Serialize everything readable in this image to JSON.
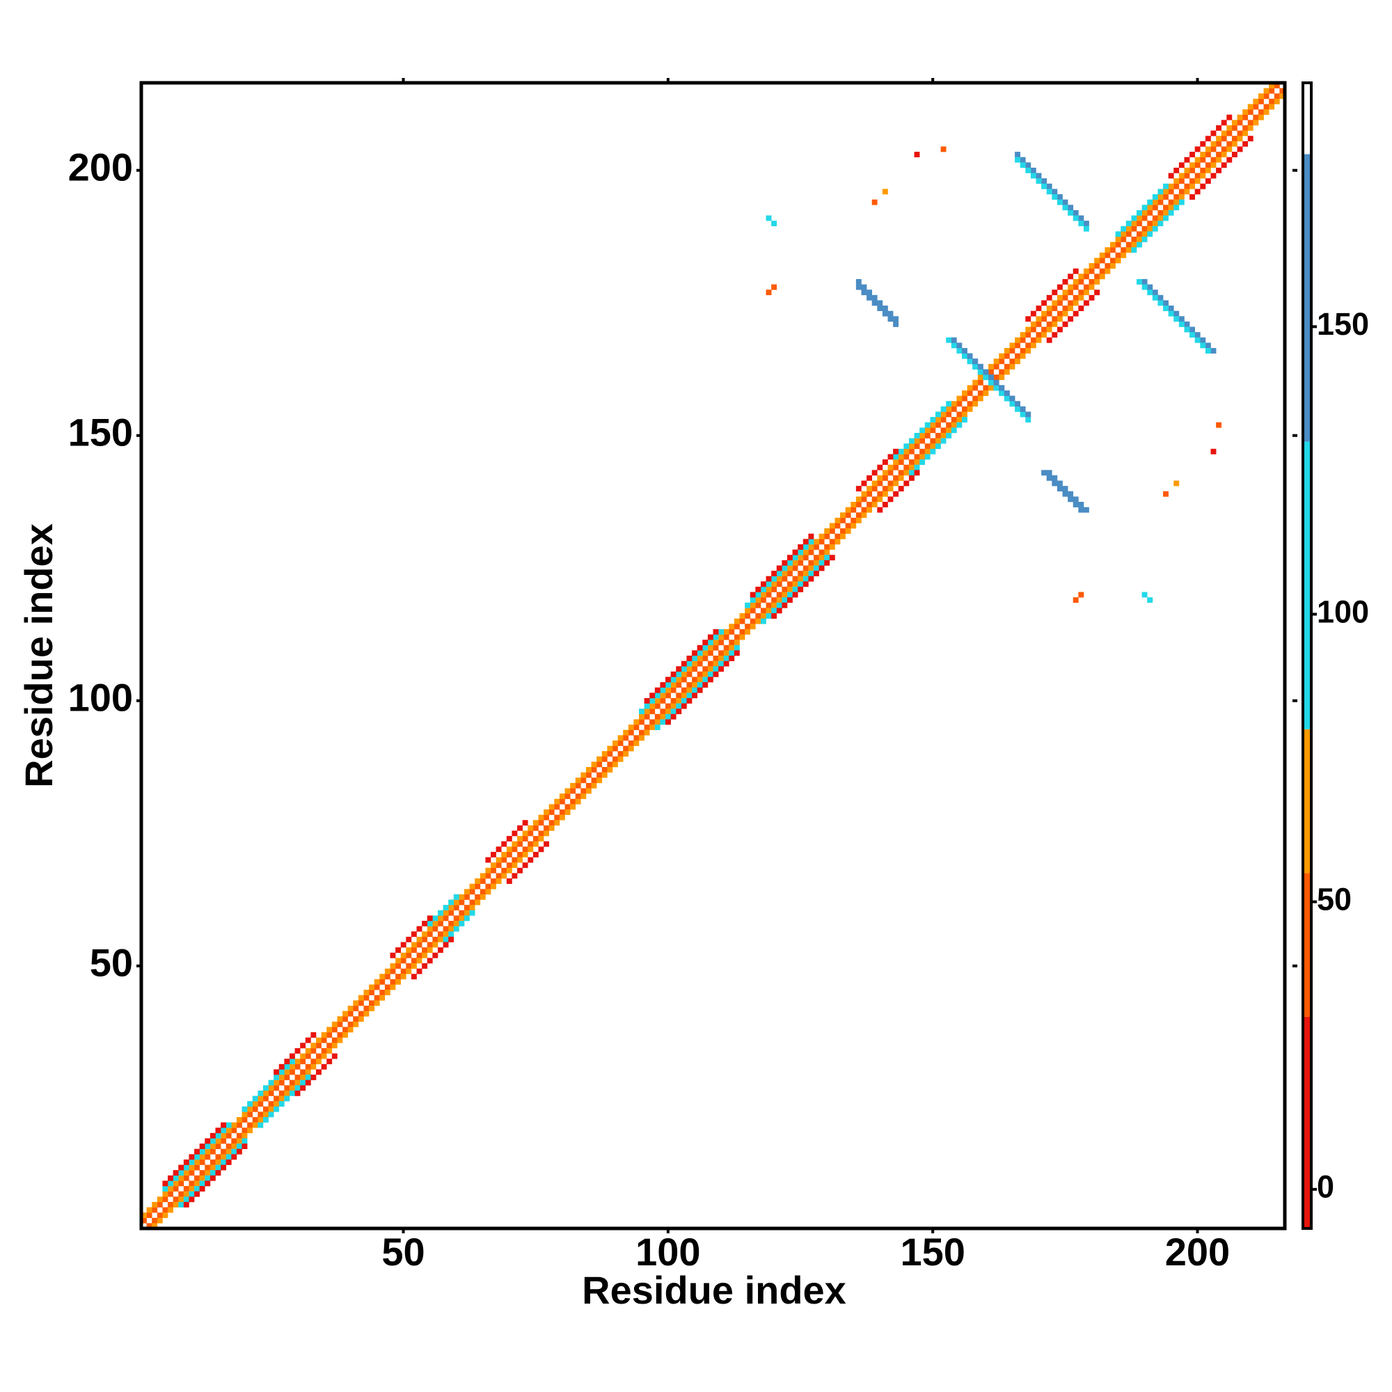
{
  "chart_data": {
    "type": "heatmap",
    "x_label": "Residue index",
    "y_label": "Residue index",
    "xlim": [
      0.5,
      216.5
    ],
    "ylim": [
      0.5,
      216.5
    ],
    "xticks": [
      50,
      100,
      150,
      200
    ],
    "yticks": [
      50,
      100,
      150,
      200
    ],
    "symmetric": true,
    "runs": [
      {
        "x": 1,
        "y": 2,
        "n": 215,
        "dy": 1,
        "value": 42
      },
      {
        "x": 1,
        "y": 3,
        "n": 214,
        "dy": 1,
        "value": 65
      },
      {
        "x": 5,
        "y": 8,
        "n": 13,
        "dy": 1,
        "value": 100
      },
      {
        "x": 20,
        "y": 23,
        "n": 10,
        "dy": 1,
        "value": 100
      },
      {
        "x": 55,
        "y": 58,
        "n": 6,
        "dy": 1,
        "value": 100
      },
      {
        "x": 95,
        "y": 98,
        "n": 16,
        "dy": 1,
        "value": 100
      },
      {
        "x": 115,
        "y": 118,
        "n": 13,
        "dy": 1,
        "value": 100
      },
      {
        "x": 143,
        "y": 146,
        "n": 11,
        "dy": 1,
        "value": 100
      },
      {
        "x": 185,
        "y": 188,
        "n": 10,
        "dy": 1,
        "value": 100
      },
      {
        "x": 5,
        "y": 9,
        "n": 12,
        "dy": 1,
        "value": 25
      },
      {
        "x": 26,
        "y": 30,
        "n": 8,
        "dy": 1,
        "value": 25
      },
      {
        "x": 48,
        "y": 52,
        "n": 8,
        "dy": 1,
        "value": 25
      },
      {
        "x": 66,
        "y": 70,
        "n": 8,
        "dy": 1,
        "value": 25
      },
      {
        "x": 96,
        "y": 100,
        "n": 14,
        "dy": 1,
        "value": 25
      },
      {
        "x": 116,
        "y": 120,
        "n": 12,
        "dy": 1,
        "value": 25
      },
      {
        "x": 136,
        "y": 140,
        "n": 8,
        "dy": 1,
        "value": 25
      },
      {
        "x": 168,
        "y": 172,
        "n": 10,
        "dy": 1,
        "value": 25
      },
      {
        "x": 195,
        "y": 199,
        "n": 12,
        "dy": 1,
        "value": 25
      },
      {
        "x": 166,
        "y": 203,
        "n": 14,
        "dy": -1,
        "value": 150
      },
      {
        "x": 166,
        "y": 202,
        "n": 14,
        "dy": -1,
        "value": 110
      },
      {
        "x": 136,
        "y": 179,
        "n": 8,
        "dy": -1,
        "value": 150
      },
      {
        "x": 136,
        "y": 178,
        "n": 8,
        "dy": -1,
        "value": 150
      },
      {
        "x": 153,
        "y": 168,
        "n": 13,
        "dy": -1,
        "value": 110
      },
      {
        "x": 154,
        "y": 168,
        "n": 12,
        "dy": -1,
        "value": 150
      },
      {
        "x": 119,
        "y": 191,
        "n": 2,
        "dy": -1,
        "value": 120
      },
      {
        "x": 119,
        "y": 177,
        "n": 2,
        "dy": 1,
        "value": 45
      },
      {
        "x": 152,
        "y": 204,
        "n": 1,
        "dy": 1,
        "value": 50
      },
      {
        "x": 147,
        "y": 203,
        "n": 1,
        "dy": 1,
        "value": 20
      },
      {
        "x": 141,
        "y": 196,
        "n": 1,
        "dy": 1,
        "value": 70
      },
      {
        "x": 139,
        "y": 194,
        "n": 1,
        "dy": 1,
        "value": 50
      }
    ],
    "colorbar": {
      "lim": [
        -6.8,
        192.4
      ],
      "ticks": [
        0,
        50,
        100,
        150
      ],
      "bins": [
        -6.8,
        30,
        55,
        80,
        130,
        180,
        192.4
      ],
      "colors": [
        "#e8140c",
        "#ff5a00",
        "#ff9a00",
        "#22d8e8",
        "#4a8cc4",
        "#ffffff"
      ]
    }
  }
}
